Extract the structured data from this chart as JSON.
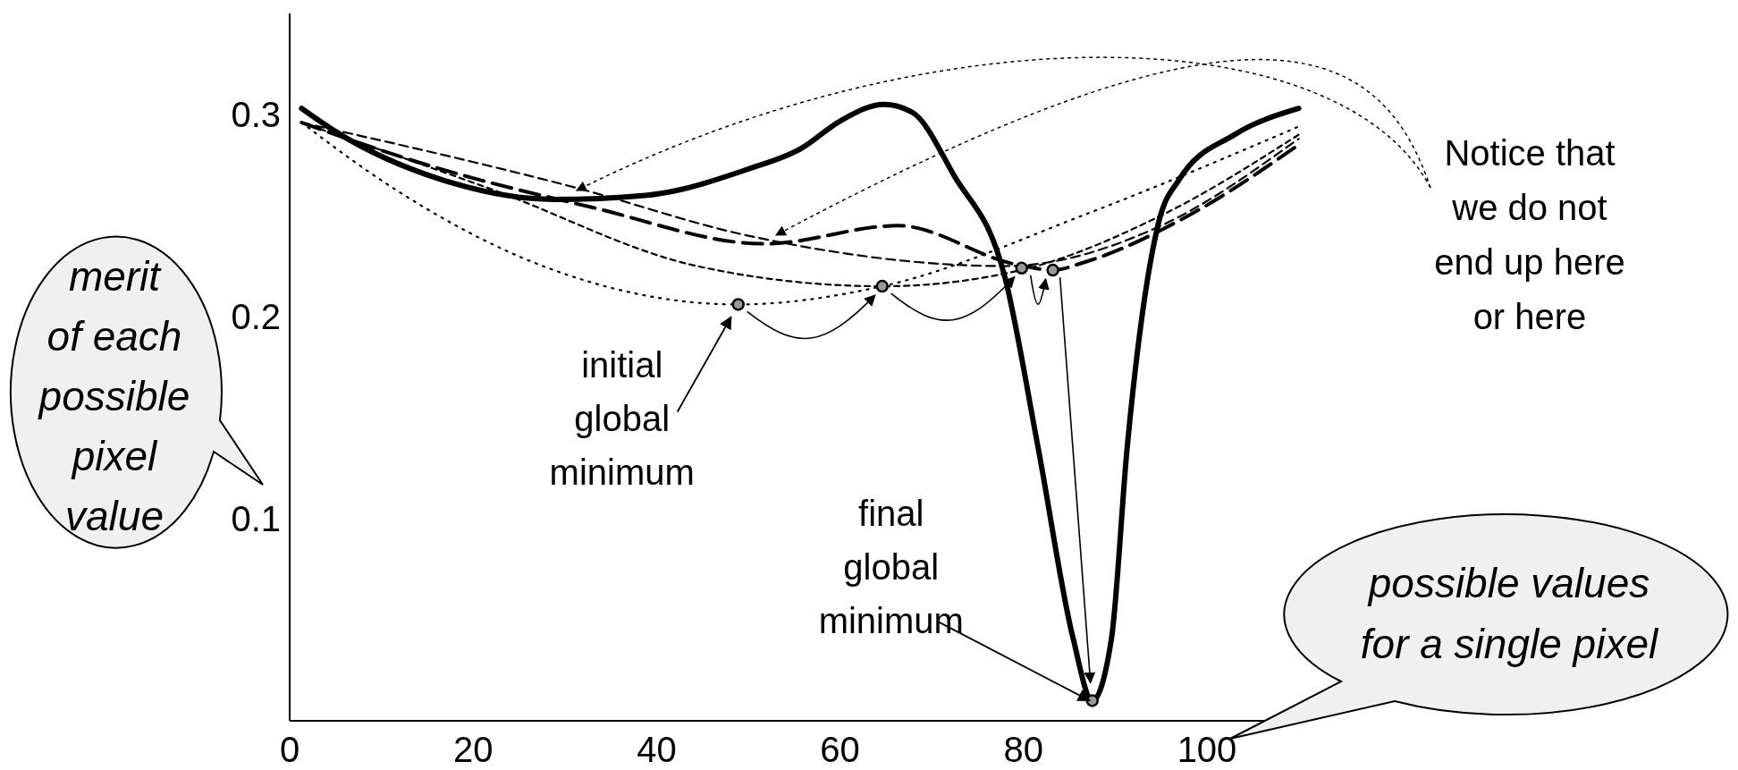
{
  "chart_data": {
    "type": "line",
    "xlabel": "possible values for a single pixel",
    "ylabel": "merit of each possible pixel value",
    "xlim": [
      0,
      110
    ],
    "ylim": [
      0,
      0.35
    ],
    "xticks": [
      0,
      20,
      40,
      60,
      80,
      100
    ],
    "yticks": [
      {
        "value": 0.3,
        "label": "0.3"
      },
      {
        "value": 0.2,
        "label": "0.2"
      },
      {
        "value": 0.1,
        "label": "0.1"
      }
    ],
    "grid": false,
    "annotations": [
      "Notice that we do not end up here or here",
      {
        "text": "initial global minimum",
        "x": 48.9,
        "y": 0.206
      },
      {
        "text": "final global minimum",
        "x": 87.5,
        "y": 0.01
      }
    ],
    "series": [
      {
        "color": "#000000",
        "line_style": "solid",
        "x": [
          1.3,
          5.2,
          16.4,
          28.8,
          38.8,
          50,
          55.7,
          60.1,
          64.8,
          67.9,
          72.4,
          78,
          81.6,
          85.4,
          87.5,
          89.6,
          91.3,
          94.7,
          97,
          103,
          110
        ],
        "values": [
          0.303,
          0.291,
          0.268,
          0.258,
          0.26,
          0.273,
          0.283,
          0.297,
          0.305,
          0.301,
          0.27,
          0.219,
          0.135,
          0.041,
          0.01,
          0.041,
          0.135,
          0.246,
          0.268,
          0.29,
          0.303
        ]
      },
      {
        "color": "#000000",
        "line_style": "dashed",
        "x": [
          1.3,
          15,
          33,
          51.8,
          66.3,
          79,
          83.2,
          86.7,
          98,
          110
        ],
        "values": [
          0.296,
          0.275,
          0.254,
          0.236,
          0.245,
          0.226,
          0.223,
          0.227,
          0.25,
          0.285
        ]
      },
      {
        "color": "#000000",
        "line_style": "dashed",
        "x": [
          1.3,
          31,
          50,
          78,
          95,
          110
        ],
        "values": [
          0.296,
          0.264,
          0.24,
          0.225,
          0.245,
          0.288
        ]
      },
      {
        "color": "#000000",
        "line_style": "dashed",
        "x": [
          1.3,
          22,
          44.4,
          64.6,
          79.7,
          95,
          110
        ],
        "values": [
          0.296,
          0.263,
          0.225,
          0.215,
          0.223,
          0.25,
          0.29
        ]
      },
      {
        "color": "#000000",
        "line_style": "dotted",
        "x": [
          1.3,
          10.8,
          27.6,
          48.9,
          64.6,
          87,
          110
        ],
        "values": [
          0.296,
          0.265,
          0.225,
          0.206,
          0.215,
          0.251,
          0.294
        ]
      },
      {
        "type": "scatter",
        "marker": "circle",
        "color": "#999999",
        "x": [
          48.9,
          64.6,
          79.8,
          83.2,
          87.5
        ],
        "values": [
          0.206,
          0.215,
          0.224,
          0.223,
          0.01
        ]
      }
    ]
  }
}
